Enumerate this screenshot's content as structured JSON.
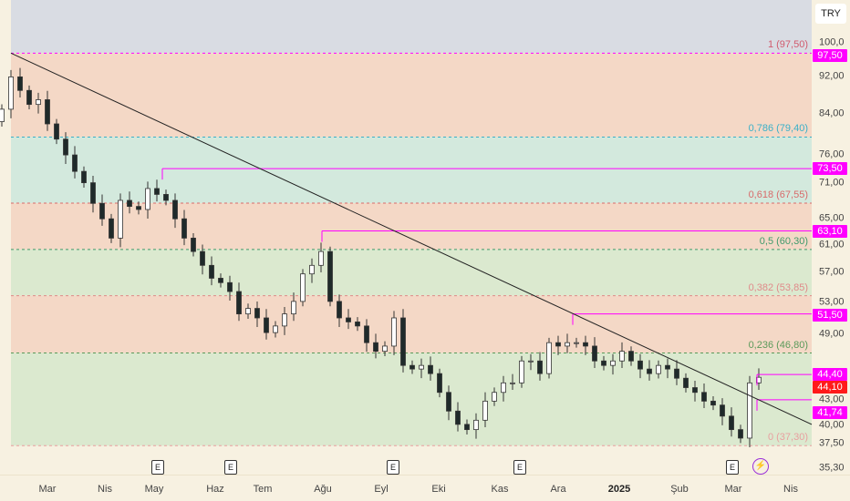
{
  "currency_button": "TRY",
  "colors": {
    "band_gray": "#d9dce3",
    "band_peach": "#f4d8c6",
    "band_mint": "#d3e9dd",
    "band_green": "#dbe9cf",
    "magenta": "#ff00ff",
    "red": "#ff1a1a",
    "candle_dark": "#1f2a2a",
    "trendline": "#222222",
    "background": "#f7f1e1"
  },
  "price_axis": {
    "ticks": [
      "100,0",
      "92,00",
      "84,00",
      "76,00",
      "71,00",
      "65,00",
      "61,00",
      "57,00",
      "53,00",
      "49,00",
      "43,00",
      "40,00",
      "37,50",
      "35,30"
    ],
    "tick_values": [
      100,
      92,
      84,
      76,
      71,
      65,
      61,
      57,
      53,
      49,
      43,
      40,
      37.5,
      35.3
    ],
    "scale": "log"
  },
  "price_labels": [
    {
      "text": "97,50",
      "value": 97.5,
      "color": "#ff00ff"
    },
    {
      "text": "73,50",
      "value": 73.5,
      "color": "#ff00ff"
    },
    {
      "text": "63,10",
      "value": 63.1,
      "color": "#ff00ff"
    },
    {
      "text": "51,50",
      "value": 51.5,
      "color": "#ff00ff"
    },
    {
      "text": "44,40",
      "value": 44.4,
      "color": "#ff00ff"
    },
    {
      "text": "44,10",
      "value": 44.1,
      "color": "#ff1a1a"
    },
    {
      "text": "41,74",
      "value": 41.74,
      "color": "#ff00ff"
    }
  ],
  "fib_levels": [
    {
      "label": "1 (97,50)",
      "value": 97.5,
      "color": "#d15b6e"
    },
    {
      "label": "0,786 (79,40)",
      "value": 79.4,
      "color": "#3ab0c8"
    },
    {
      "label": "0,618 (67,55)",
      "value": 67.55,
      "color": "#d86b6b"
    },
    {
      "label": "0,5 (60,30)",
      "value": 60.3,
      "color": "#3f9a6b"
    },
    {
      "label": "0,382 (53,85)",
      "value": 53.85,
      "color": "#e08a8a"
    },
    {
      "label": "0,236 (46,80)",
      "value": 46.8,
      "color": "#5a9a5a"
    },
    {
      "label": "0 (37,30)",
      "value": 37.3,
      "color": "#e8a0a0"
    }
  ],
  "time_axis": [
    {
      "label": "Mar",
      "bold": false
    },
    {
      "label": "Nis",
      "bold": false
    },
    {
      "label": "May",
      "bold": false
    },
    {
      "label": "Haz",
      "bold": false
    },
    {
      "label": "Tem",
      "bold": false
    },
    {
      "label": "Ağu",
      "bold": false
    },
    {
      "label": "Eyl",
      "bold": false
    },
    {
      "label": "Eki",
      "bold": false
    },
    {
      "label": "Kas",
      "bold": false
    },
    {
      "label": "Ara",
      "bold": false
    },
    {
      "label": "2025",
      "bold": true
    },
    {
      "label": "Şub",
      "bold": false
    },
    {
      "label": "Mar",
      "bold": false
    },
    {
      "label": "Nis",
      "bold": false
    }
  ],
  "earnings_marker": "E",
  "chart_data": {
    "type": "candlestick",
    "yscale": "log",
    "ylim": [
      35.3,
      100
    ],
    "closes": [
      85,
      92,
      89,
      86,
      87,
      82,
      79,
      76,
      73,
      71,
      67.5,
      65,
      62,
      68,
      67,
      66.5,
      70,
      69,
      68,
      65,
      62,
      60,
      58,
      56.2,
      55.6,
      54.4,
      51.5,
      52.2,
      51,
      49.2,
      50,
      51.5,
      53.1,
      56.8,
      58,
      60,
      53.1,
      51,
      50.5,
      50,
      48,
      47,
      47.6,
      51,
      45.4,
      45,
      45.4,
      44.5,
      42.5,
      40.6,
      39.3,
      38.8,
      39.7,
      41.6,
      42.5,
      43.5,
      43.5,
      45.9,
      45.9,
      44.5,
      48,
      47.6,
      48,
      48,
      47.6,
      45.9,
      45.4,
      45.9,
      47,
      45.9,
      45,
      44.5,
      45.4,
      45,
      44,
      43,
      42.5,
      41.6,
      41.2,
      40.1,
      38.8,
      38,
      43.5,
      44.1
    ],
    "horizontal_lines": [
      73.5,
      63.1,
      51.5,
      44.4,
      41.74
    ],
    "trendline": {
      "from": 97.5,
      "to": 39.3
    }
  }
}
